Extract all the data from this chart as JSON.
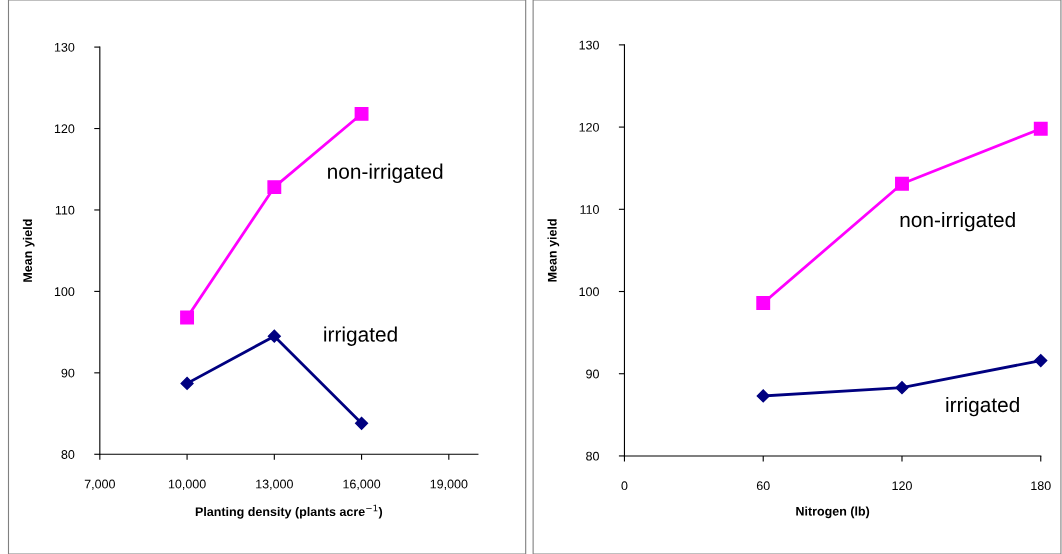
{
  "chart_data": [
    {
      "type": "line",
      "xlabel": "Planting density (plants acre$^{−1}$)",
      "ylabel": "Mean yield",
      "x": [
        10000,
        13000,
        16000
      ],
      "series": [
        {
          "name": "non-irrigated",
          "color": "#ff00ff",
          "marker": "square",
          "values": [
            96.8,
            112.8,
            121.8
          ]
        },
        {
          "name": "irrigated",
          "color": "#000080",
          "marker": "diamond",
          "values": [
            88.7,
            94.5,
            83.8
          ]
        }
      ],
      "xlim": [
        7000,
        20000
      ],
      "xticks": [
        {
          "value": 7000,
          "label": "7,000"
        },
        {
          "value": 10000,
          "label": "10,000"
        },
        {
          "value": 13000,
          "label": "13,000"
        },
        {
          "value": 16000,
          "label": "16,000"
        },
        {
          "value": 19000,
          "label": "19,000"
        }
      ],
      "ylim": [
        80,
        130
      ],
      "yticks": [
        80,
        90,
        100,
        110,
        120,
        130
      ],
      "grid": false,
      "legend": false
    },
    {
      "type": "line",
      "xlabel": "Nitrogen (lb)",
      "ylabel": "Mean yield",
      "x": [
        60,
        120,
        180
      ],
      "series": [
        {
          "name": "non-irrigated",
          "color": "#ff00ff",
          "marker": "square",
          "values": [
            98.6,
            113.1,
            119.8
          ]
        },
        {
          "name": "irrigated",
          "color": "#000080",
          "marker": "diamond",
          "values": [
            87.3,
            88.3,
            91.6
          ]
        }
      ],
      "xlim": [
        0,
        180
      ],
      "xticks": [
        0,
        60,
        120,
        180
      ],
      "ylim": [
        80,
        130
      ],
      "yticks": [
        80,
        90,
        100,
        110,
        120,
        130
      ],
      "grid": false,
      "legend": false
    }
  ]
}
